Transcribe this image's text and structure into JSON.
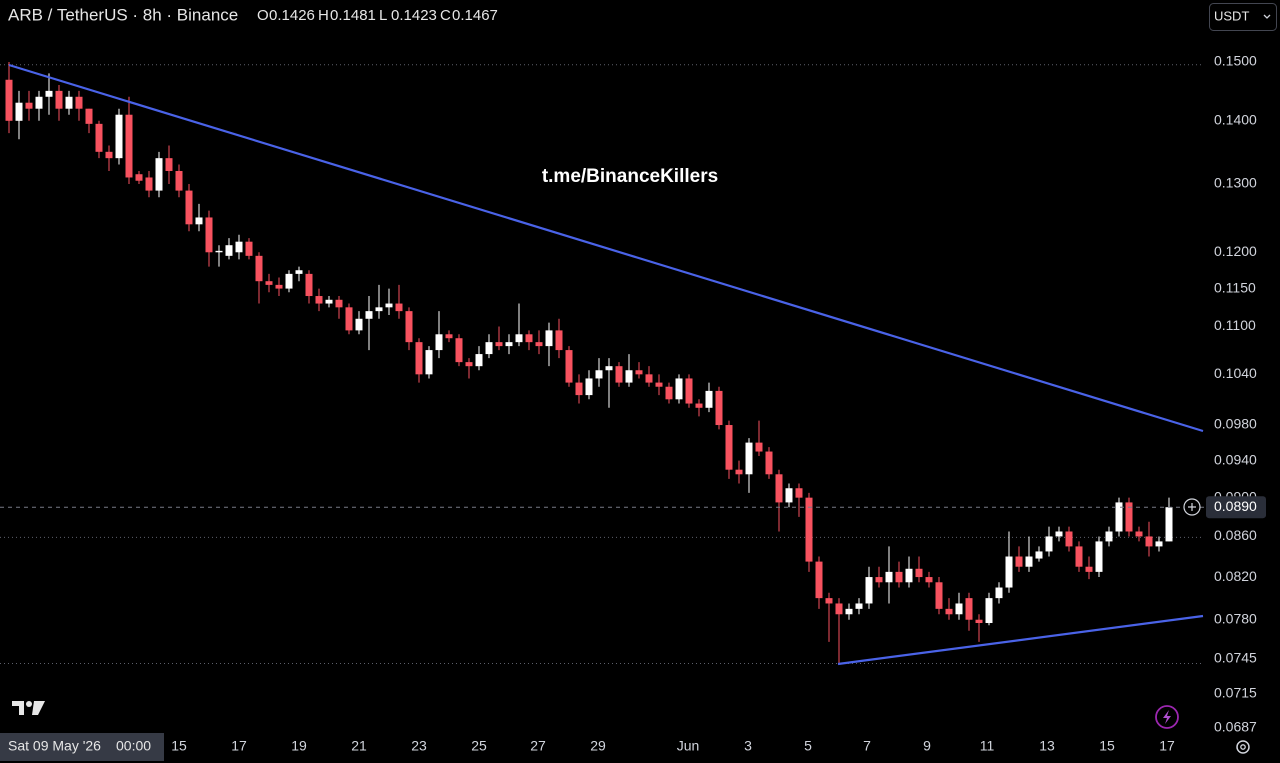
{
  "chart_data": {
    "type": "candlestick",
    "title": "ARB / TetherUS · 8h · Binance",
    "watermark": "t.me/BinanceKillers",
    "currency": "USDT",
    "header_ohlc": [
      {
        "label": "O",
        "value": 0.1426
      },
      {
        "label": "H",
        "value": 0.1481
      },
      {
        "label": "L",
        "value": 0.1423
      },
      {
        "label": "C",
        "value": 0.1467
      }
    ],
    "crosshair_date": "Sat 09 May '26",
    "crosshair_time": "00:00",
    "xtick_labels": [
      "15",
      "17",
      "19",
      "21",
      "23",
      "25",
      "27",
      "29",
      "Jun",
      "3",
      "5",
      "7",
      "9",
      "11",
      "13",
      "15",
      "17"
    ],
    "up_color": "#ffffff",
    "down_color": "#f7525f",
    "log_scale": true,
    "ylim": [
      0.0679,
      0.1613
    ],
    "yticks": [
      {
        "value": 0.15,
        "label": "0.1500"
      },
      {
        "value": 0.14,
        "label": "0.1400"
      },
      {
        "value": 0.13,
        "label": "0.1300"
      },
      {
        "value": 0.12,
        "label": "0.1200"
      },
      {
        "value": 0.115,
        "label": "0.1150"
      },
      {
        "value": 0.11,
        "label": "0.1100"
      },
      {
        "value": 0.104,
        "label": "0.1040"
      },
      {
        "value": 0.098,
        "label": "0.0980"
      },
      {
        "value": 0.094,
        "label": "0.0940"
      },
      {
        "value": 0.09,
        "label": "0.0900"
      },
      {
        "value": 0.086,
        "label": "0.0860"
      },
      {
        "value": 0.082,
        "label": "0.0820"
      },
      {
        "value": 0.078,
        "label": "0.0780"
      },
      {
        "value": 0.0745,
        "label": "0.0745"
      },
      {
        "value": 0.0715,
        "label": "0.0715"
      },
      {
        "value": 0.0687,
        "label": "0.0687"
      }
    ],
    "last_price": {
      "value": 0.089,
      "label": "0.0890"
    },
    "levels": [
      0.1495,
      0.0859,
      0.0741
    ],
    "open": [
      0.1469,
      0.14,
      0.143,
      0.142,
      0.144,
      0.145,
      0.142,
      0.144,
      0.142,
      0.1395,
      0.135,
      0.134,
      0.141,
      0.1315,
      0.131,
      0.129,
      0.134,
      0.132,
      0.129,
      0.124,
      0.125,
      0.12,
      0.1195,
      0.12,
      0.1215,
      0.1195,
      0.116,
      0.1155,
      0.115,
      0.117,
      0.117,
      0.114,
      0.113,
      0.1135,
      0.1125,
      0.1095,
      0.111,
      0.112,
      0.1125,
      0.113,
      0.112,
      0.108,
      0.104,
      0.107,
      0.109,
      0.1085,
      0.1055,
      0.105,
      0.1065,
      0.108,
      0.1075,
      0.108,
      0.109,
      0.108,
      0.1075,
      0.1095,
      0.107,
      0.103,
      0.1015,
      0.1035,
      0.1045,
      0.105,
      0.103,
      0.1045,
      0.104,
      0.103,
      0.1025,
      0.101,
      0.1035,
      0.1005,
      0.1,
      0.102,
      0.098,
      0.093,
      0.0925,
      0.096,
      0.095,
      0.0925,
      0.0895,
      0.091,
      0.09,
      0.0835,
      0.08,
      0.0795,
      0.0785,
      0.079,
      0.0795,
      0.082,
      0.0815,
      0.0825,
      0.0815,
      0.0828,
      0.082,
      0.0815,
      0.079,
      0.0785,
      0.08,
      0.078,
      0.0777,
      0.08,
      0.081,
      0.084,
      0.083,
      0.0838,
      0.0845,
      0.086,
      0.0865,
      0.085,
      0.083,
      0.0825,
      0.0855,
      0.0865,
      0.0895,
      0.0865,
      0.086,
      0.085,
      0.0855
    ],
    "high": [
      0.15,
      0.145,
      0.145,
      0.145,
      0.148,
      0.146,
      0.145,
      0.145,
      0.142,
      0.14,
      0.136,
      0.142,
      0.144,
      0.132,
      0.132,
      0.135,
      0.136,
      0.133,
      0.13,
      0.127,
      0.126,
      0.121,
      0.122,
      0.1225,
      0.122,
      0.12,
      0.117,
      0.1165,
      0.1175,
      0.118,
      0.1175,
      0.115,
      0.114,
      0.114,
      0.113,
      0.112,
      0.114,
      0.1155,
      0.115,
      0.1155,
      0.1125,
      0.1085,
      0.1075,
      0.112,
      0.1095,
      0.109,
      0.106,
      0.1075,
      0.109,
      0.11,
      0.109,
      0.113,
      0.1095,
      0.1095,
      0.1105,
      0.111,
      0.1075,
      0.104,
      0.1045,
      0.106,
      0.106,
      0.1055,
      0.1065,
      0.1055,
      0.105,
      0.104,
      0.103,
      0.104,
      0.104,
      0.101,
      0.103,
      0.1025,
      0.0985,
      0.094,
      0.0965,
      0.0985,
      0.0955,
      0.093,
      0.0915,
      0.0915,
      0.0905,
      0.084,
      0.0805,
      0.08,
      0.0795,
      0.08,
      0.083,
      0.083,
      0.085,
      0.0835,
      0.084,
      0.084,
      0.0825,
      0.082,
      0.08,
      0.0805,
      0.0805,
      0.0785,
      0.0805,
      0.0815,
      0.0865,
      0.085,
      0.086,
      0.085,
      0.087,
      0.087,
      0.087,
      0.0855,
      0.084,
      0.086,
      0.087,
      0.09,
      0.09,
      0.087,
      0.0875,
      0.086,
      0.09
    ],
    "low": [
      0.138,
      0.137,
      0.14,
      0.14,
      0.141,
      0.14,
      0.141,
      0.14,
      0.138,
      0.134,
      0.132,
      0.133,
      0.13,
      0.13,
      0.128,
      0.128,
      0.13,
      0.128,
      0.123,
      0.123,
      0.118,
      0.118,
      0.119,
      0.119,
      0.119,
      0.113,
      0.1145,
      0.114,
      0.1145,
      0.116,
      0.113,
      0.112,
      0.1125,
      0.111,
      0.109,
      0.109,
      0.107,
      0.111,
      0.1115,
      0.111,
      0.107,
      0.103,
      0.1035,
      0.106,
      0.108,
      0.105,
      0.1035,
      0.1045,
      0.106,
      0.107,
      0.1065,
      0.1075,
      0.107,
      0.1065,
      0.105,
      0.106,
      0.1025,
      0.1005,
      0.101,
      0.1025,
      0.1,
      0.1025,
      0.1025,
      0.1035,
      0.1025,
      0.1015,
      0.1005,
      0.1005,
      0.1,
      0.099,
      0.0995,
      0.0975,
      0.092,
      0.0915,
      0.0905,
      0.0945,
      0.092,
      0.0865,
      0.089,
      0.088,
      0.0825,
      0.079,
      0.076,
      0.0741,
      0.078,
      0.0785,
      0.079,
      0.081,
      0.0795,
      0.081,
      0.081,
      0.0815,
      0.081,
      0.0785,
      0.078,
      0.078,
      0.077,
      0.076,
      0.0775,
      0.0795,
      0.0805,
      0.0825,
      0.0825,
      0.0835,
      0.084,
      0.0855,
      0.0845,
      0.0825,
      0.0818,
      0.082,
      0.085,
      0.086,
      0.086,
      0.0855,
      0.084,
      0.0845,
      0.0855
    ],
    "close": [
      0.14,
      0.143,
      0.142,
      0.144,
      0.145,
      0.142,
      0.144,
      0.142,
      0.1395,
      0.135,
      0.134,
      0.141,
      0.131,
      0.1305,
      0.129,
      0.134,
      0.132,
      0.129,
      0.124,
      0.125,
      0.12,
      0.1202,
      0.121,
      0.1215,
      0.1195,
      0.116,
      0.1155,
      0.115,
      0.117,
      0.1175,
      0.114,
      0.113,
      0.1135,
      0.1125,
      0.1095,
      0.111,
      0.112,
      0.1125,
      0.113,
      0.112,
      0.108,
      0.104,
      0.107,
      0.109,
      0.1085,
      0.1055,
      0.105,
      0.1065,
      0.108,
      0.1075,
      0.108,
      0.109,
      0.108,
      0.1075,
      0.1095,
      0.107,
      0.103,
      0.1015,
      0.1035,
      0.1045,
      0.105,
      0.103,
      0.1045,
      0.104,
      0.103,
      0.1025,
      0.101,
      0.1035,
      0.1005,
      0.1,
      0.102,
      0.098,
      0.093,
      0.0925,
      0.096,
      0.095,
      0.0925,
      0.0895,
      0.091,
      0.09,
      0.0835,
      0.08,
      0.0795,
      0.0785,
      0.079,
      0.0795,
      0.082,
      0.0815,
      0.0825,
      0.0815,
      0.0828,
      0.082,
      0.0815,
      0.079,
      0.0785,
      0.0795,
      0.078,
      0.0777,
      0.08,
      0.081,
      0.084,
      0.083,
      0.084,
      0.0845,
      0.086,
      0.0865,
      0.085,
      0.083,
      0.0825,
      0.0855,
      0.0865,
      0.0895,
      0.0865,
      0.086,
      0.085,
      0.0855,
      0.089
    ]
  }
}
